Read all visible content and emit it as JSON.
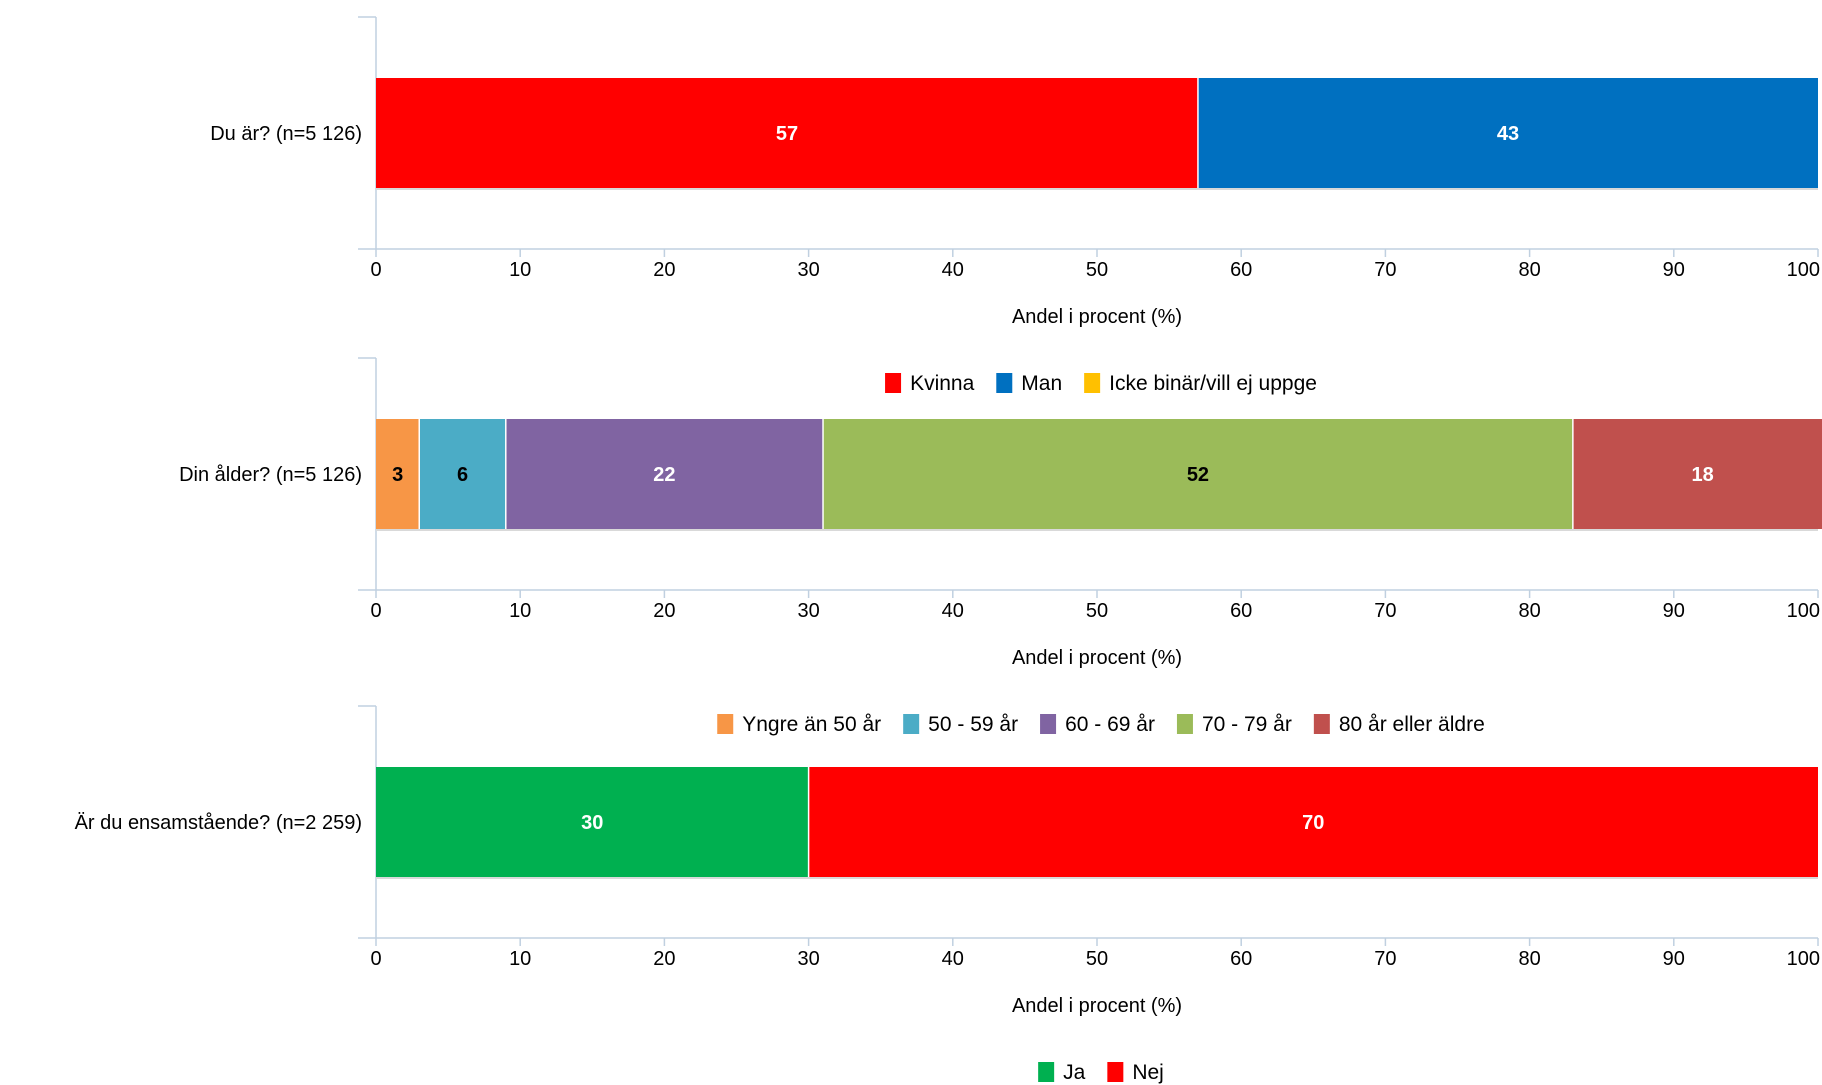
{
  "chart_data": [
    {
      "type": "bar",
      "orientation": "horizontal",
      "stacked": true,
      "categories": [
        "Du är? (n=5 126)"
      ],
      "series": [
        {
          "name": "Kvinna",
          "values": [
            57
          ],
          "color": "#ff0000",
          "label_color": "#ffffff"
        },
        {
          "name": "Man",
          "values": [
            43
          ],
          "color": "#0070c0",
          "label_color": "#ffffff"
        },
        {
          "name": "Icke binär/vill ej uppge",
          "values": [
            0
          ],
          "color": "#ffc000",
          "label_color": "#000000"
        }
      ],
      "xlabel": "Andel i procent (%)",
      "xlim": [
        0,
        100
      ],
      "ticks": [
        "0",
        "10",
        "20",
        "30",
        "40",
        "50",
        "60",
        "70",
        "80",
        "90",
        "100"
      ],
      "legend_position": "bottom",
      "grid": false
    },
    {
      "type": "bar",
      "orientation": "horizontal",
      "stacked": true,
      "categories": [
        "Din ålder? (n=5 126)"
      ],
      "series": [
        {
          "name": "Yngre än 50 år",
          "values": [
            3
          ],
          "color": "#f79646",
          "label_color": "#000000"
        },
        {
          "name": "50 - 59 år",
          "values": [
            6
          ],
          "color": "#4bacc6",
          "label_color": "#000000"
        },
        {
          "name": "60 - 69 år",
          "values": [
            22
          ],
          "color": "#8064a2",
          "label_color": "#ffffff"
        },
        {
          "name": "70 - 79 år",
          "values": [
            52
          ],
          "color": "#9bbb59",
          "label_color": "#000000"
        },
        {
          "name": "80 år eller äldre",
          "values": [
            18
          ],
          "color": "#c0504d",
          "label_color": "#ffffff"
        }
      ],
      "xlabel": "Andel i procent (%)",
      "xlim": [
        0,
        100
      ],
      "ticks": [
        "0",
        "10",
        "20",
        "30",
        "40",
        "50",
        "60",
        "70",
        "80",
        "90",
        "100"
      ],
      "legend_position": "bottom",
      "grid": false
    },
    {
      "type": "bar",
      "orientation": "horizontal",
      "stacked": true,
      "categories": [
        "Är du ensamstående? (n=2 259)"
      ],
      "series": [
        {
          "name": "Ja",
          "values": [
            30
          ],
          "color": "#00b050",
          "label_color": "#ffffff"
        },
        {
          "name": "Nej",
          "values": [
            70
          ],
          "color": "#ff0000",
          "label_color": "#ffffff"
        }
      ],
      "xlabel": "Andel i procent (%)",
      "xlim": [
        0,
        100
      ],
      "ticks": [
        "0",
        "10",
        "20",
        "30",
        "40",
        "50",
        "60",
        "70",
        "80",
        "90",
        "100"
      ],
      "legend_position": "bottom",
      "grid": false
    }
  ]
}
